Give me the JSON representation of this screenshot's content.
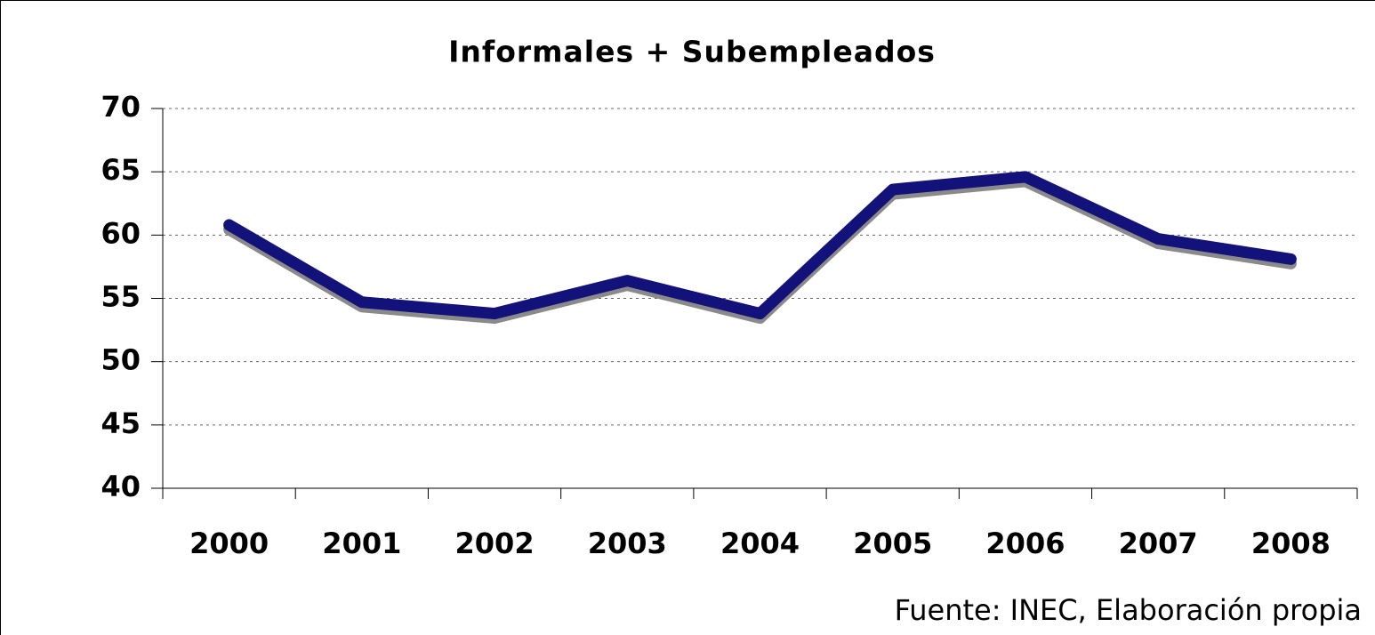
{
  "chart_data": {
    "type": "line",
    "title": "Informales + Subempleados",
    "categories": [
      "2000",
      "2001",
      "2002",
      "2003",
      "2004",
      "2005",
      "2006",
      "2007",
      "2008"
    ],
    "series": [
      {
        "name": "Informales + Subempleados",
        "color": "#12127a",
        "values": [
          60.8,
          54.7,
          53.8,
          56.4,
          53.8,
          63.6,
          64.6,
          59.7,
          58.1
        ]
      }
    ],
    "ylim": [
      40,
      70
    ],
    "yticks": [
      40,
      45,
      50,
      55,
      60,
      65,
      70
    ],
    "grid": true,
    "source": "Fuente: INEC, Elaboración propia"
  }
}
